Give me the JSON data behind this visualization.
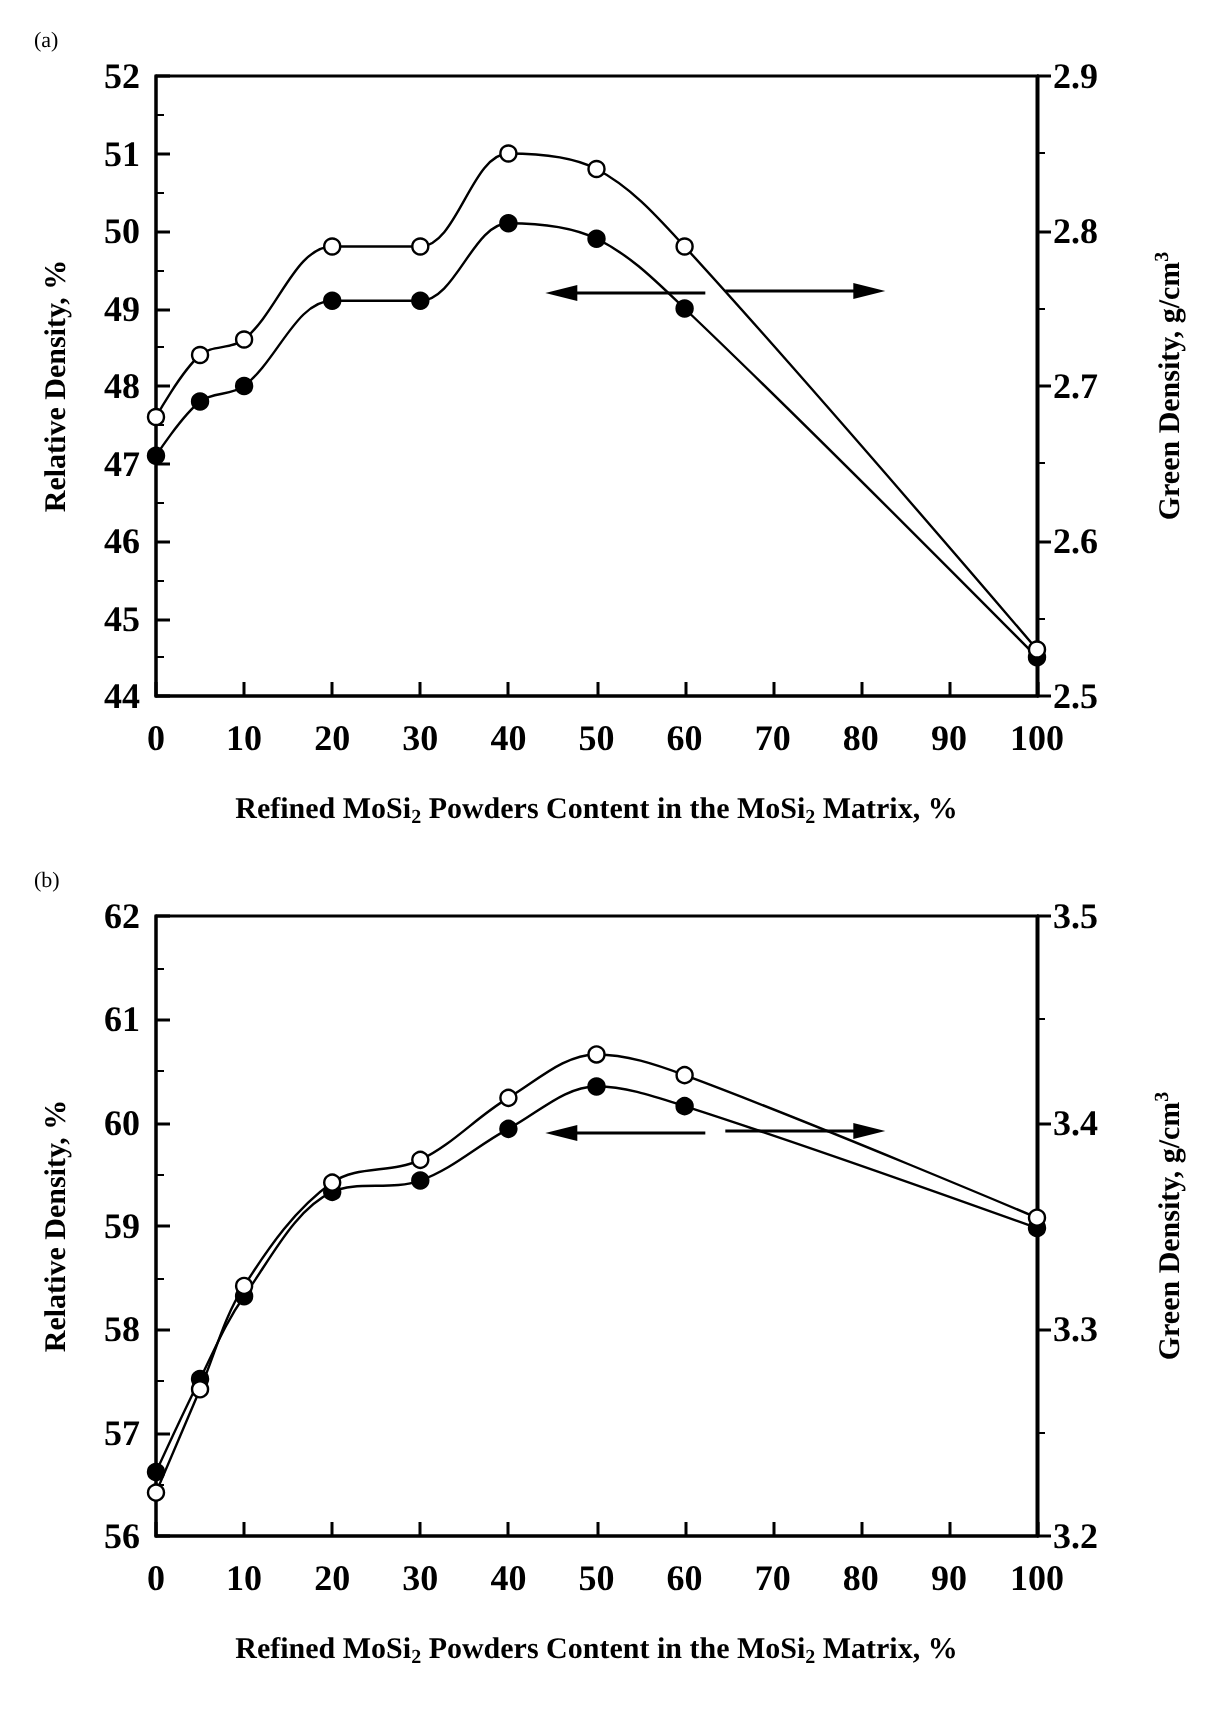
{
  "chart_data": [
    {
      "type": "line",
      "title": "(a)",
      "xlabel": "Refined MoSi$_{2}$ Powders Content in the MoSi$_{2}$ Matrix, %",
      "ylabel": "Relative Density, %",
      "y2label": "Green Density, g/cm$^{3}$",
      "x": [
        0,
        5,
        10,
        20,
        30,
        40,
        50,
        60,
        100
      ],
      "series": [
        {
          "color": "#000000",
          "values": [
            47.1,
            47.8,
            48.0,
            49.1,
            49.1,
            50.1,
            49.9,
            49.0,
            44.5
          ]
        },
        {
          "color": "#000000",
          "axis": "y2",
          "values": [
            2.68,
            2.72,
            2.73,
            2.79,
            2.79,
            2.85,
            2.84,
            2.79,
            2.53
          ]
        }
      ],
      "xlim": [
        0,
        100
      ],
      "xticks": [
        0,
        10,
        20,
        30,
        40,
        50,
        60,
        70,
        80,
        90,
        100
      ],
      "ylim": [
        44,
        52
      ],
      "yticks": [
        44,
        45,
        46,
        47,
        48,
        49,
        50,
        51,
        52
      ],
      "y2lim": [
        2.5,
        2.9
      ],
      "y2ticks": [
        2.5,
        2.6,
        2.7,
        2.8,
        2.9
      ],
      "marker": "circle",
      "grid": false
    },
    {
      "type": "line",
      "title": "(b)",
      "xlabel": "Refined MoSi$_{2}$ Powders Content in the MoSi$_{2}$ Matrix, %",
      "ylabel": "Relative Density, %",
      "y2label": "Green Density, g/cm$^{3}$",
      "x": [
        0,
        5,
        10,
        20,
        30,
        40,
        50,
        60,
        100
      ],
      "series": [
        {
          "color": "#000000",
          "values": [
            56.62,
            57.52,
            58.32,
            59.33,
            59.44,
            59.94,
            60.35,
            60.16,
            58.98
          ]
        },
        {
          "color": "#000000",
          "axis": "y2",
          "values": [
            3.221,
            3.271,
            3.321,
            3.371,
            3.382,
            3.412,
            3.433,
            3.423,
            3.354
          ]
        }
      ],
      "xlim": [
        0,
        100
      ],
      "xticks": [
        0,
        10,
        20,
        30,
        40,
        50,
        60,
        70,
        80,
        90,
        100
      ],
      "ylim": [
        56,
        62
      ],
      "yticks": [
        56,
        57,
        58,
        59,
        60,
        61,
        62
      ],
      "y2lim": [
        3.2,
        3.5
      ],
      "y2ticks": [
        3.2,
        3.3,
        3.4,
        3.5
      ],
      "marker": "circle",
      "grid": false
    }
  ]
}
